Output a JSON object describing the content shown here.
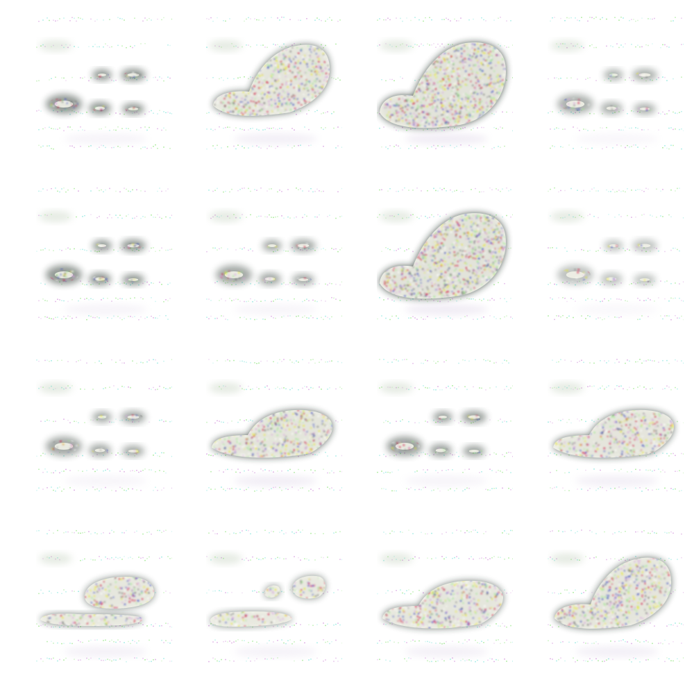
{
  "grid": {
    "rows": 4,
    "cols": 4,
    "tiles": [
      {
        "shape": "pills",
        "intensity": 0.6
      },
      {
        "shape": "blob",
        "intensity": 0.85
      },
      {
        "shape": "blob-large",
        "intensity": 1.0
      },
      {
        "shape": "pills",
        "intensity": 0.45
      },
      {
        "shape": "pills",
        "intensity": 0.6
      },
      {
        "shape": "pills",
        "intensity": 0.5
      },
      {
        "shape": "blob-large",
        "intensity": 1.0
      },
      {
        "shape": "pills",
        "intensity": 0.35
      },
      {
        "shape": "pills",
        "intensity": 0.5
      },
      {
        "shape": "car",
        "intensity": 0.9
      },
      {
        "shape": "pills",
        "intensity": 0.55
      },
      {
        "shape": "car",
        "intensity": 0.85
      },
      {
        "shape": "car-small",
        "intensity": 0.75
      },
      {
        "shape": "car-split",
        "intensity": 0.7
      },
      {
        "shape": "car",
        "intensity": 0.8
      },
      {
        "shape": "blob",
        "intensity": 0.85
      }
    ]
  },
  "colors": {
    "background": "#ffffff",
    "noise_green": "#9be88a",
    "noise_magenta": "#d8a0e0",
    "noise_cyan": "#8fe8e0",
    "dark_halo": "#1e2a24",
    "highlight": "#f2f2e8",
    "red": "#d0103a",
    "yellow": "#e8e820",
    "blue": "#3040c0"
  }
}
